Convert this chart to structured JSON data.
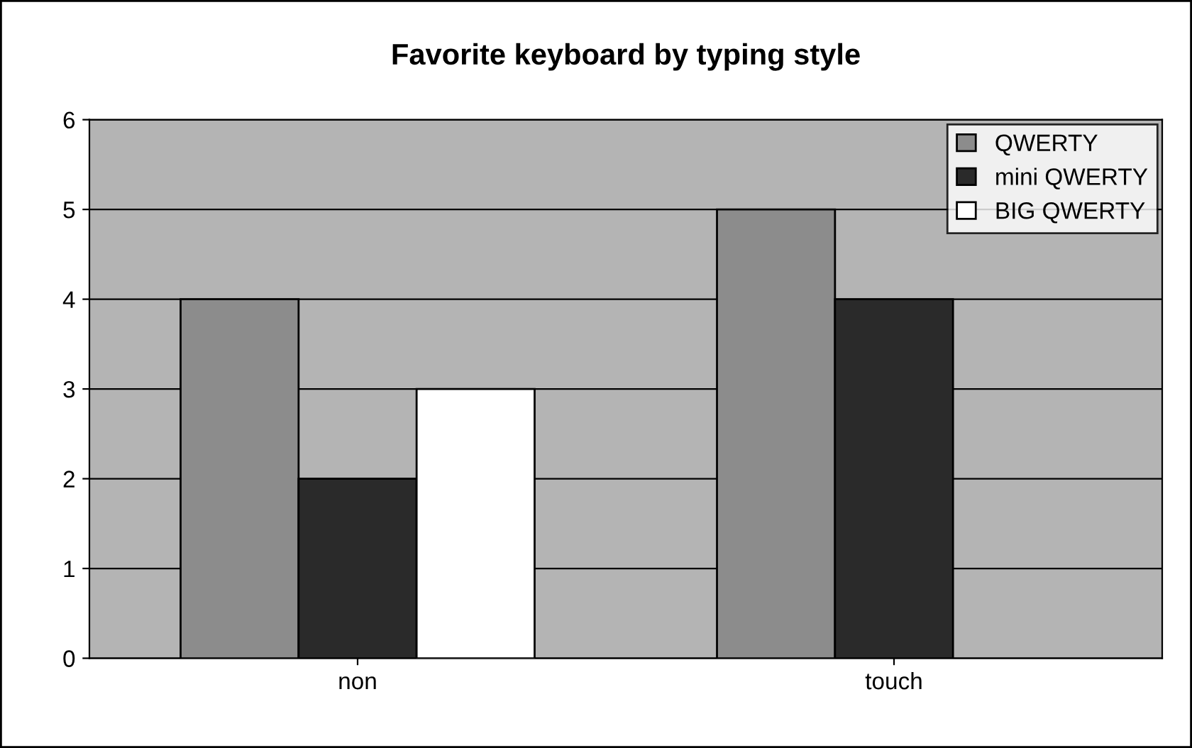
{
  "chart_data": {
    "type": "bar",
    "title": "Favorite keyboard by typing style",
    "categories": [
      "non",
      "touch"
    ],
    "series": [
      {
        "name": "QWERTY",
        "color": "#8c8c8c",
        "values": [
          4,
          5
        ]
      },
      {
        "name": "mini QWERTY",
        "color": "#2a2a2a",
        "values": [
          2,
          4
        ]
      },
      {
        "name": "BIG QWERTY",
        "color": "#ffffff",
        "values": [
          3,
          null
        ]
      }
    ],
    "ylim": [
      0,
      6
    ],
    "yticks": [
      0,
      1,
      2,
      3,
      4,
      5,
      6
    ],
    "grid": "y",
    "legend": "top right"
  }
}
